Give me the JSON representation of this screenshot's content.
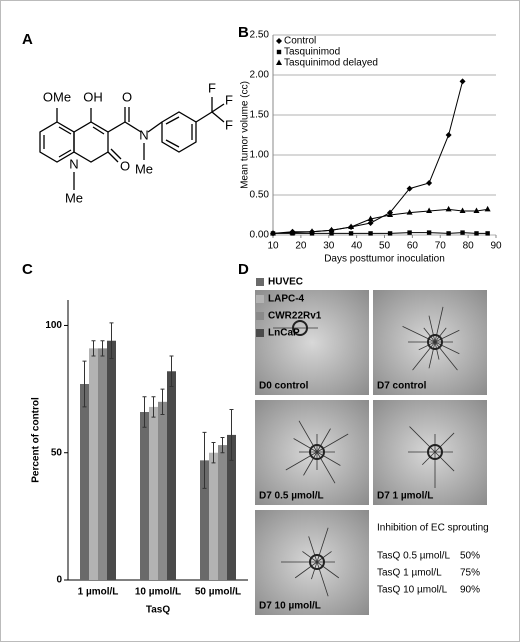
{
  "panel_labels": [
    "A",
    "B",
    "C",
    "D"
  ],
  "structure": {
    "labels": [
      "OMe",
      "OH",
      "O",
      "N",
      "Me",
      "O",
      "N",
      "Me",
      "F",
      "F",
      "F"
    ]
  },
  "chart_data": [
    {
      "type": "line",
      "y_label": "Mean tumor volume (cc)",
      "x_label": "Days posttumor inoculation",
      "xlim": [
        10,
        90
      ],
      "xticks": [
        10,
        20,
        30,
        40,
        50,
        60,
        70,
        80,
        90
      ],
      "ylim": [
        0,
        2.5
      ],
      "yticks": [
        {
          "value": 0,
          "label": "0.00"
        },
        {
          "value": 0.5,
          "label": "0.50"
        },
        {
          "value": 1,
          "label": "1.00"
        },
        {
          "value": 1.5,
          "label": "1.50"
        },
        {
          "value": 2,
          "label": "2.00"
        },
        {
          "value": 2.5,
          "label": "2.50"
        }
      ],
      "grid": true,
      "legend": "top-left",
      "series": [
        {
          "name": "Control",
          "color": "#000000",
          "marker": "diamond",
          "x": [
            10,
            17,
            24,
            31,
            38,
            45,
            52,
            59,
            66,
            73,
            78
          ],
          "values": [
            0.02,
            0.04,
            0.04,
            0.06,
            0.1,
            0.15,
            0.28,
            0.58,
            0.65,
            1.25,
            1.92
          ]
        },
        {
          "name": "Tasquinimod",
          "color": "#000000",
          "marker": "square",
          "x": [
            10,
            17,
            24,
            31,
            38,
            45,
            52,
            59,
            66,
            73,
            78,
            83,
            87
          ],
          "values": [
            0.02,
            0.02,
            0.02,
            0.02,
            0.02,
            0.02,
            0.02,
            0.03,
            0.03,
            0.02,
            0.03,
            0.02,
            0.02
          ]
        },
        {
          "name": "Tasquinimod delayed",
          "color": "#000000",
          "marker": "triangle",
          "x": [
            10,
            17,
            24,
            31,
            38,
            45,
            52,
            59,
            66,
            73,
            78,
            83,
            87
          ],
          "values": [
            0.02,
            0.03,
            0.04,
            0.06,
            0.1,
            0.2,
            0.25,
            0.28,
            0.3,
            0.32,
            0.3,
            0.3,
            0.32
          ]
        }
      ]
    },
    {
      "type": "bar",
      "y_label": "Percent of control",
      "x_label": "TasQ",
      "categories": [
        "1 µmol/L",
        "10 µmol/L",
        "50 µmol/L"
      ],
      "ylim": [
        0,
        110
      ],
      "yticks": [
        0,
        50,
        100
      ],
      "legend": "top-right",
      "series": [
        {
          "name": "HUVEC",
          "color": "#6a6a6a",
          "values": [
            77,
            66,
            47
          ],
          "errors": [
            9,
            6,
            11
          ]
        },
        {
          "name": "LAPC-4",
          "color": "#b3b3b3",
          "values": [
            91,
            68,
            50
          ],
          "errors": [
            3,
            4,
            4
          ]
        },
        {
          "name": "CWR22Rv1",
          "color": "#8a8a8a",
          "values": [
            91,
            70,
            53
          ],
          "errors": [
            3,
            5,
            3
          ]
        },
        {
          "name": "LnCaP",
          "color": "#4a4a4a",
          "values": [
            94,
            82,
            57
          ],
          "errors": [
            7,
            6,
            10
          ]
        }
      ]
    }
  ],
  "images": {
    "labels": [
      "D0 control",
      "D7 control",
      "D7 0.5 µmol/L",
      "D7 1 µmol/L",
      "D7 10 µmol/L"
    ]
  },
  "sprouting": {
    "title": "Inhibition of EC sprouting",
    "rows": [
      [
        "TasQ 0.5 µmol/L",
        "50%"
      ],
      [
        "TasQ 1 µmol/L",
        "75%"
      ],
      [
        "TasQ 10 µmol/L",
        "90%"
      ]
    ]
  }
}
